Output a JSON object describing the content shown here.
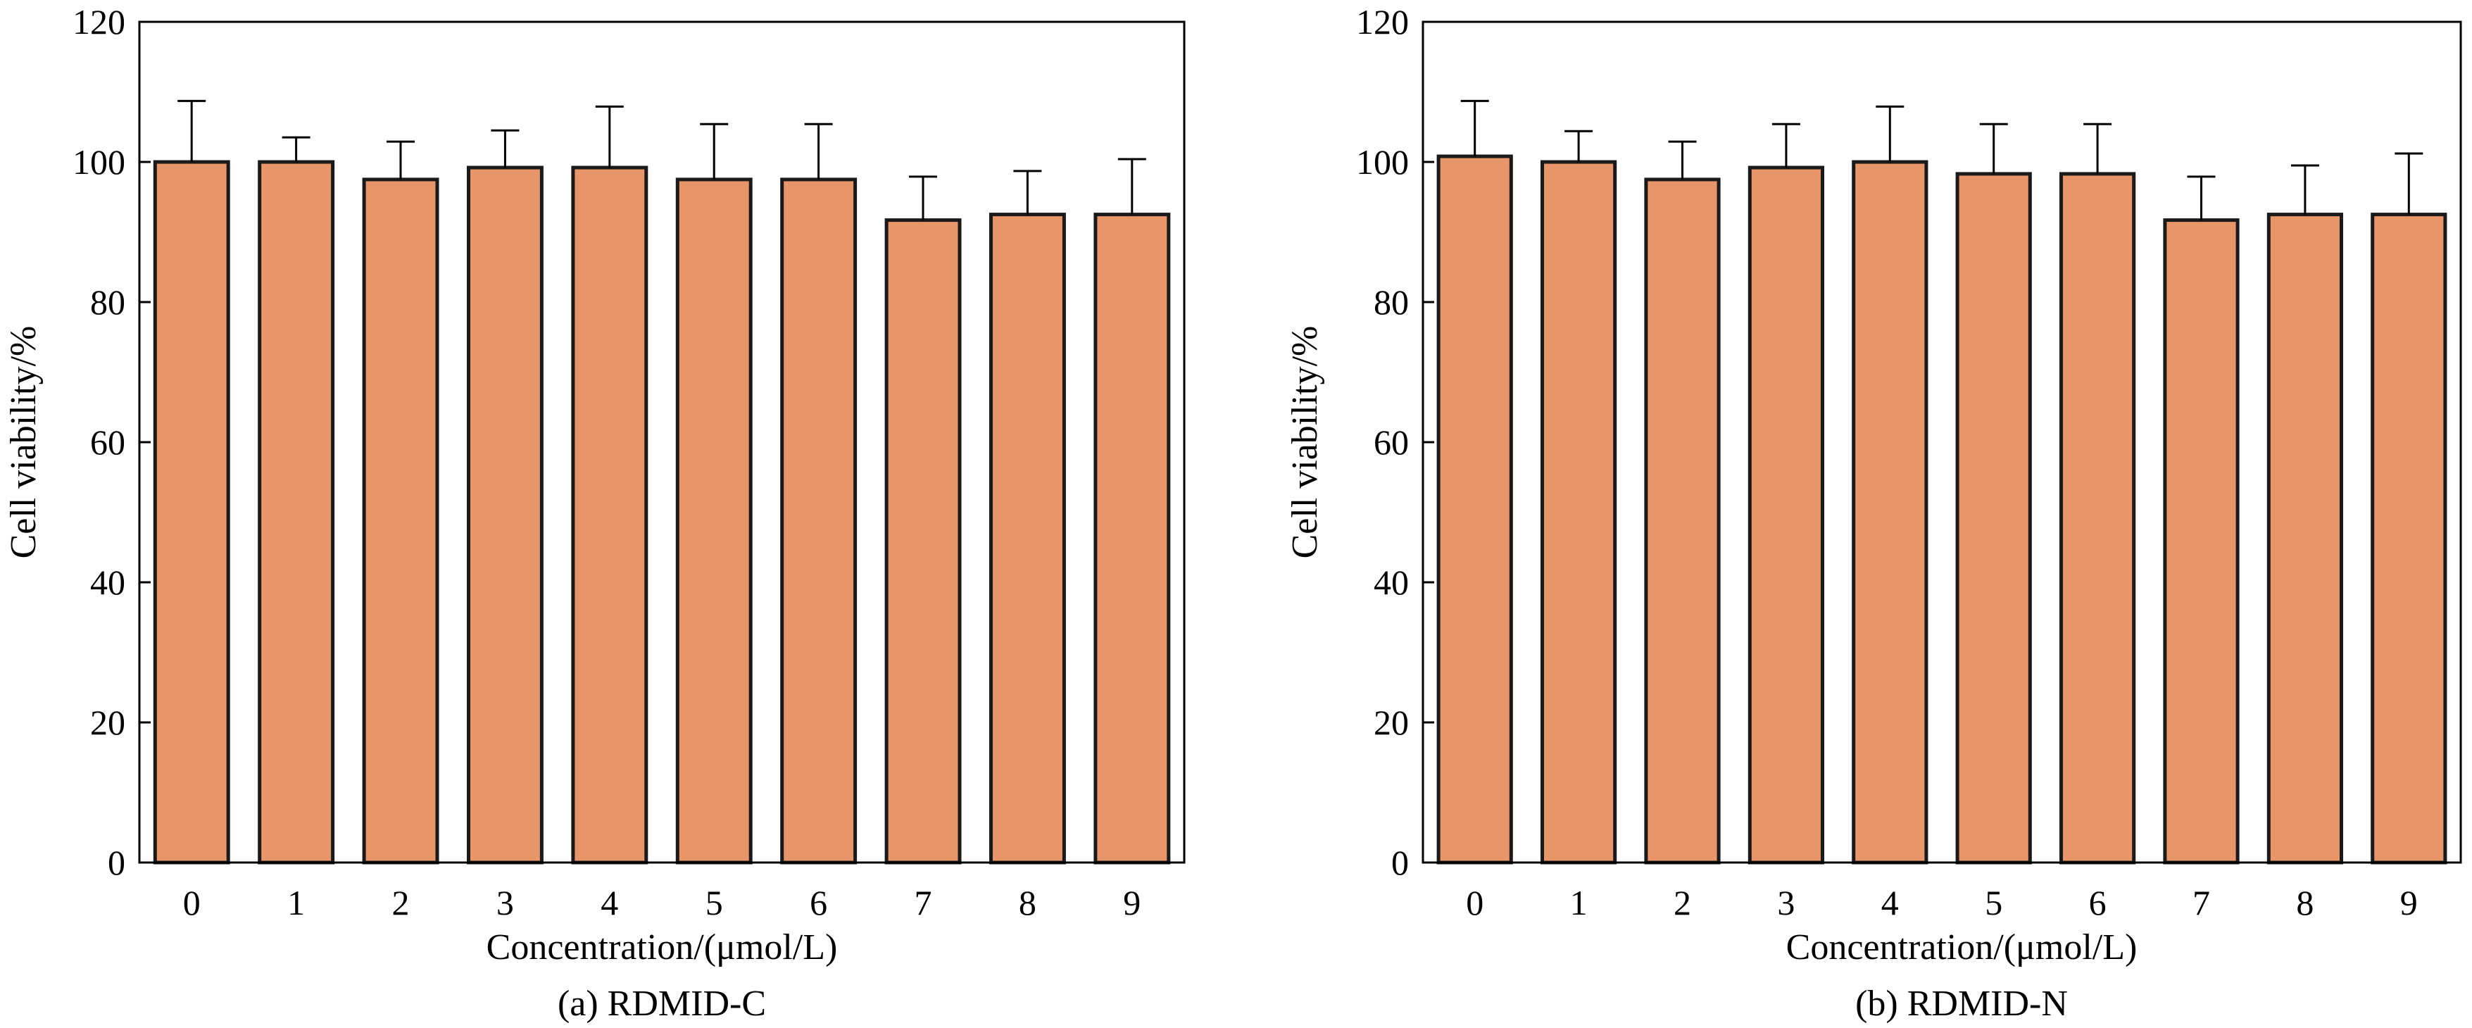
{
  "chart_data": [
    {
      "type": "bar",
      "caption": "(a) RDMID-C",
      "xlabel": "Concentration/(μmol/L)",
      "ylabel": "Cell viability/%",
      "categories": [
        "0",
        "1",
        "2",
        "3",
        "4",
        "5",
        "6",
        "7",
        "8",
        "9"
      ],
      "values": [
        100,
        100,
        97.5,
        99.2,
        99.2,
        97.5,
        97.5,
        91.7,
        92.5,
        92.5
      ],
      "error_upper": [
        8.7,
        3.5,
        5.4,
        5.3,
        8.7,
        7.9,
        7.9,
        6.2,
        6.2,
        7.9
      ],
      "ylim": [
        0,
        120
      ],
      "yticks": [
        "0",
        "20",
        "40",
        "60",
        "80",
        "100",
        "120"
      ],
      "bar_color": "#E8956A",
      "grid": false
    },
    {
      "type": "bar",
      "caption": "(b) RDMID-N",
      "xlabel": "Concentration/(μmol/L)",
      "ylabel": "Cell viability/%",
      "categories": [
        "0",
        "1",
        "2",
        "3",
        "4",
        "5",
        "6",
        "7",
        "8",
        "9"
      ],
      "values": [
        100.8,
        100,
        97.5,
        99.2,
        100,
        98.3,
        98.3,
        91.7,
        92.5,
        92.5
      ],
      "error_upper": [
        7.9,
        4.4,
        5.4,
        6.2,
        7.9,
        7.1,
        7.1,
        6.2,
        7.0,
        8.7
      ],
      "ylim": [
        0,
        120
      ],
      "yticks": [
        "0",
        "20",
        "40",
        "60",
        "80",
        "100",
        "120"
      ],
      "bar_color": "#E8956A",
      "grid": false
    }
  ]
}
